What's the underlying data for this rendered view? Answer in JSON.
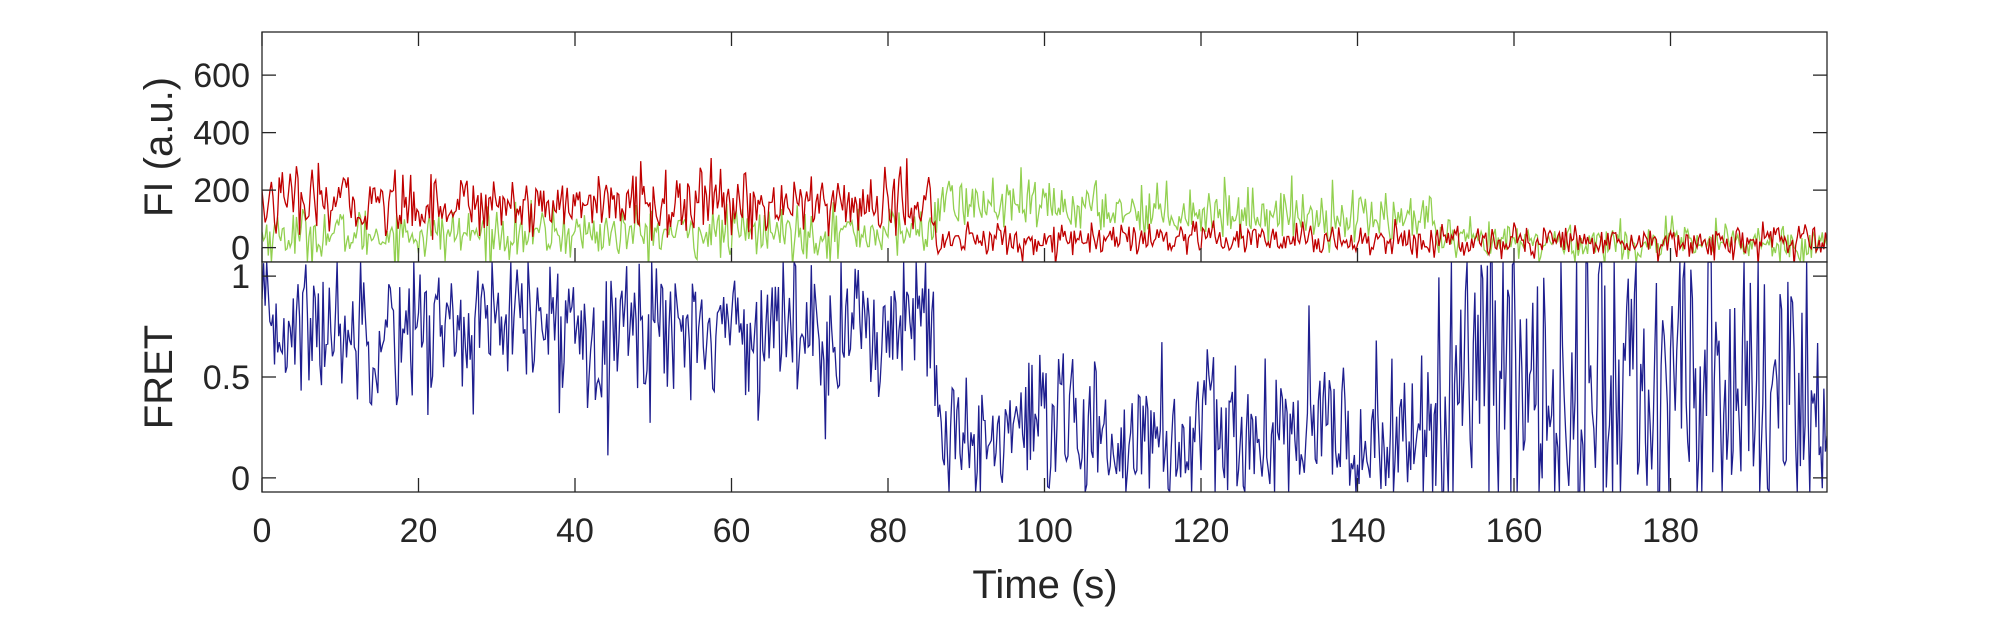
{
  "chart_data": {
    "type": "line",
    "x_axis": {
      "label": "Time (s)",
      "range": [
        0,
        200
      ],
      "ticks": [
        0,
        20,
        40,
        60,
        80,
        100,
        120,
        140,
        160,
        180
      ],
      "tick_labels": [
        "0",
        "20",
        "40",
        "60",
        "80",
        "100",
        "120",
        "140",
        "160",
        "180"
      ]
    },
    "panels": [
      {
        "id": "fluorescence",
        "ylabel": "FI (a.u.)",
        "ylim": [
          -50,
          750
        ],
        "yticks": [
          0,
          200,
          400,
          600
        ],
        "ytick_labels": [
          "0",
          "200",
          "400",
          "600"
        ],
        "series": [
          {
            "color": "#92d050",
            "segments": [
              {
                "t0": 0,
                "t1": 86,
                "mean_start": 45,
                "mean_end": 55,
                "noise": 45
              },
              {
                "t0": 86,
                "t1": 150,
                "mean_start": 155,
                "mean_end": 100,
                "noise": 45
              },
              {
                "t0": 150,
                "t1": 200,
                "mean_start": 20,
                "mean_end": 15,
                "noise": 35
              }
            ]
          },
          {
            "color": "#c00000",
            "segments": [
              {
                "t0": 0,
                "t1": 86,
                "mean_start": 155,
                "mean_end": 150,
                "noise": 55
              },
              {
                "t0": 86,
                "t1": 150,
                "mean_start": 25,
                "mean_end": 25,
                "noise": 30
              },
              {
                "t0": 150,
                "t1": 200,
                "mean_start": 25,
                "mean_end": 20,
                "noise": 30
              }
            ]
          }
        ]
      },
      {
        "id": "fret",
        "ylabel": "FRET",
        "ylim": [
          -0.07,
          1.07
        ],
        "yticks": [
          0,
          0.5,
          1
        ],
        "ytick_labels": [
          "0",
          "0.5",
          "1"
        ],
        "series": [
          {
            "color": "#1f1f8f",
            "segments": [
              {
                "t0": 0,
                "t1": 86,
                "mean_start": 0.75,
                "mean_end": 0.75,
                "noise": 0.18
              },
              {
                "t0": 86,
                "t1": 150,
                "mean_start": 0.2,
                "mean_end": 0.2,
                "noise": 0.2
              },
              {
                "t0": 150,
                "t1": 200,
                "mean_start": 0.45,
                "mean_end": 0.45,
                "noise": 0.45
              }
            ]
          }
        ]
      }
    ]
  }
}
